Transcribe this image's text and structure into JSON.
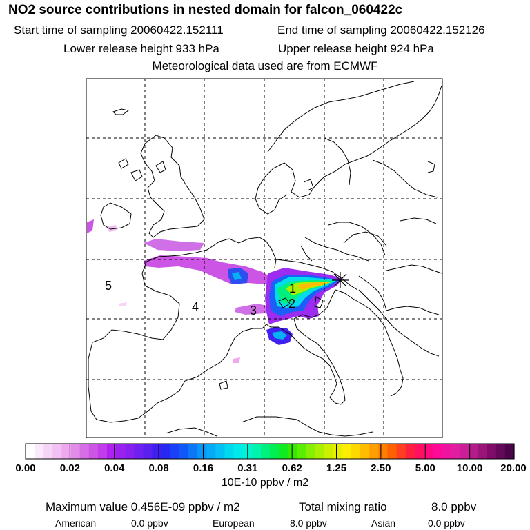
{
  "title": "NO2 source contributions in nested domain for falcon_060422c",
  "header": {
    "start_time": "Start time of sampling 20060422.152111",
    "end_time": "End time of sampling 20060422.152126",
    "lower_height": "Lower release height  933 hPa",
    "upper_height": "Upper release height  924 hPa",
    "met_data": "Meteorological data used are from ECMWF"
  },
  "map": {
    "grid": "dashed",
    "markers": [
      "1",
      "2",
      "3",
      "4",
      "5"
    ]
  },
  "legend": {
    "ticks": [
      "0.00",
      "0.02",
      "0.04",
      "0.08",
      "0.16",
      "0.31",
      "0.62",
      "1.25",
      "2.50",
      "5.00",
      "10.00",
      "20.00"
    ],
    "colors": [
      "#ffffff",
      "#fbe8fb",
      "#f6d4f6",
      "#f2c0f2",
      "#eea8ee",
      "#e08ce8",
      "#d86ee6",
      "#cc55e6",
      "#c23cec",
      "#b020f0",
      "#9c20f0",
      "#8820f0",
      "#7020f0",
      "#5a20f0",
      "#4020f0",
      "#2828f4",
      "#1a40f8",
      "#1058f8",
      "#0c78f8",
      "#0896f8",
      "#06aaf6",
      "#04c0f4",
      "#02d8ee",
      "#00eaea",
      "#00f4d4",
      "#00f4b0",
      "#00f080",
      "#00ee50",
      "#10ea20",
      "#34ea00",
      "#5cee00",
      "#86f000",
      "#aaf000",
      "#ccf000",
      "#e8f000",
      "#fbee00",
      "#ffd800",
      "#ffbc00",
      "#ff9e00",
      "#ff8000",
      "#ff6000",
      "#ff4020",
      "#ff2040",
      "#ff1060",
      "#ff0880",
      "#ff0a98",
      "#f012a0",
      "#e01ea0",
      "#cc1e98",
      "#b41a8a",
      "#9a147a",
      "#800c6a",
      "#64085a",
      "#4c0448"
    ],
    "units": "10E-10 ppbv / m2"
  },
  "footer": {
    "max_value": "Maximum value  0.456E-09 ppbv / m2",
    "total_label": "Total mixing ratio",
    "total_value": "8.0 ppbv",
    "american_label": "American",
    "american_value": "0.0 ppbv",
    "european_label": "European",
    "european_value": "8.0 ppbv",
    "asian_label": "Asian",
    "asian_value": "0.0 ppbv"
  }
}
